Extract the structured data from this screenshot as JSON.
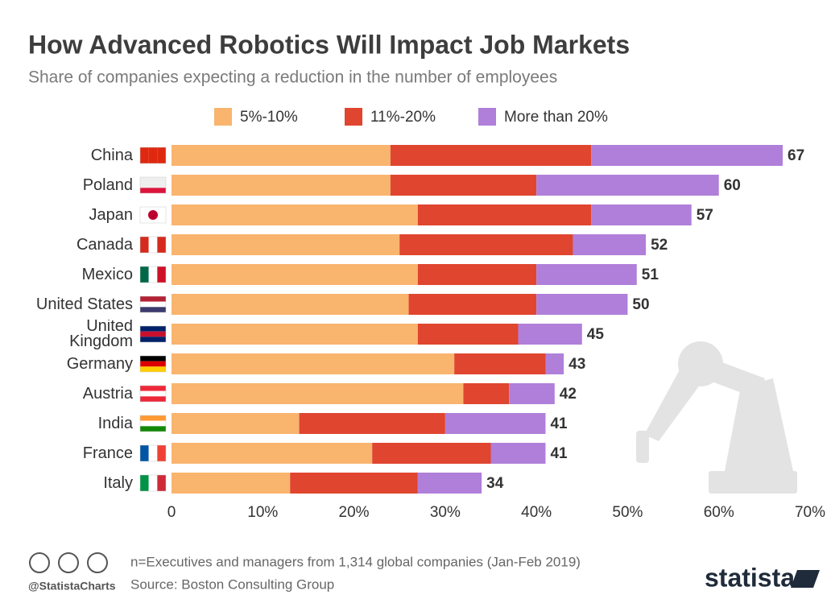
{
  "chart_data": {
    "type": "stacked-barh",
    "title": "How Advanced Robotics Will Impact Job Markets",
    "subtitle": "Share of companies expecting a reduction in the number of employees",
    "categories": [
      "China",
      "Poland",
      "Japan",
      "Canada",
      "Mexico",
      "United States",
      "United Kingdom",
      "Germany",
      "Austria",
      "India",
      "France",
      "Italy"
    ],
    "series": [
      {
        "name": "5%-10%",
        "color": "#f9b46e",
        "values": [
          24,
          24,
          27,
          25,
          27,
          26,
          27,
          31,
          32,
          14,
          22,
          13
        ]
      },
      {
        "name": "11%-20%",
        "color": "#e0452f",
        "values": [
          22,
          16,
          19,
          19,
          13,
          14,
          11,
          10,
          5,
          16,
          13,
          14
        ]
      },
      {
        "name": "More than 20%",
        "color": "#b07fd9",
        "values": [
          21,
          20,
          11,
          8,
          11,
          10,
          7,
          2,
          5,
          11,
          6,
          7
        ]
      }
    ],
    "totals": [
      67,
      60,
      57,
      52,
      51,
      50,
      45,
      43,
      42,
      41,
      41,
      34
    ],
    "xlim": [
      0,
      70
    ],
    "xticks": [
      0,
      {
        "value": 10,
        "label": "10%"
      },
      {
        "value": 20,
        "label": "20%"
      },
      {
        "value": 30,
        "label": "30%"
      },
      {
        "value": 40,
        "label": "40%"
      },
      {
        "value": 50,
        "label": "50%"
      },
      {
        "value": 60,
        "label": "60%"
      },
      {
        "value": 70,
        "label": "70%"
      }
    ],
    "grid": false,
    "legend": "top",
    "note": "n=Executives and managers from 1,314 global companies (Jan-Feb 2019)",
    "source": "Source: Boston Consulting Group",
    "handle": "@StatistaCharts",
    "brand": "statista"
  }
}
